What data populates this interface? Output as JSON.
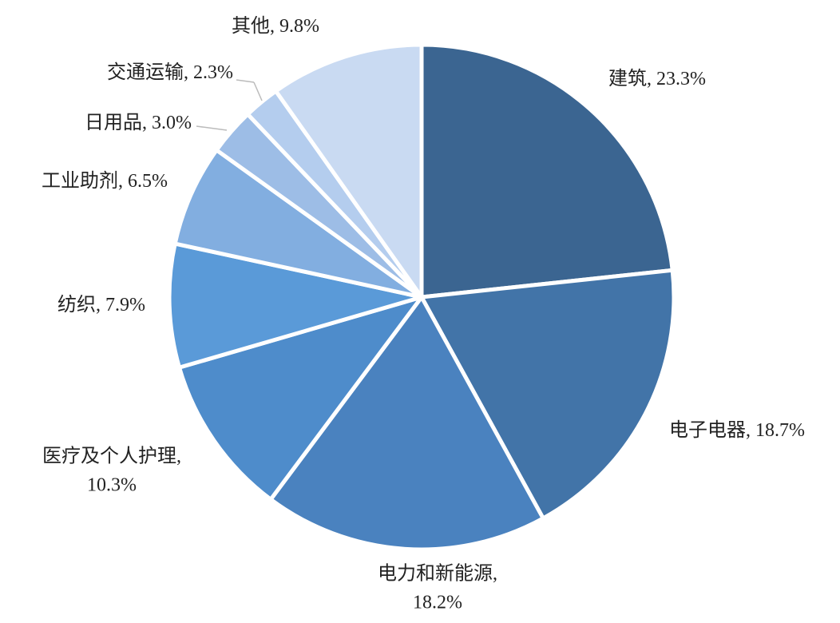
{
  "chart_data": {
    "type": "pie",
    "categories": [
      "建筑,",
      "电子电器,",
      "电力和新能源,",
      "医疗及个人护理,",
      "纺织,",
      "工业助剂,",
      "日用品,",
      "交通运输,",
      "其他,"
    ],
    "values": [
      23.3,
      18.7,
      18.2,
      10.3,
      7.9,
      6.5,
      3.0,
      2.3,
      9.8
    ],
    "value_labels": [
      "23.3%",
      "18.7%",
      "18.2%",
      "10.3%",
      "7.9%",
      "6.5%",
      "3.0%",
      "2.3%",
      "9.8%"
    ],
    "colors": [
      "#3b6591",
      "#4274a8",
      "#4a82bf",
      "#4e8ccb",
      "#5a9ad8",
      "#82aee0",
      "#9dbde6",
      "#b4cdee",
      "#c9daf2"
    ]
  }
}
